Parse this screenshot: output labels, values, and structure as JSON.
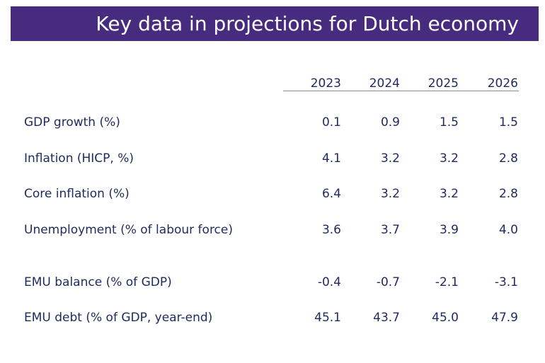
{
  "title": "Key data in projections for Dutch economy",
  "table": {
    "years": [
      "2023",
      "2024",
      "2025",
      "2026"
    ],
    "rows": [
      {
        "label": "GDP growth (%)",
        "values": [
          "0.1",
          "0.9",
          "1.5",
          "1.5"
        ]
      },
      {
        "label": "Inflation (HICP, %)",
        "values": [
          "4.1",
          "3.2",
          "3.2",
          "2.8"
        ]
      },
      {
        "label": "Core inflation (%)",
        "values": [
          "6.4",
          "3.2",
          "3.2",
          "2.8"
        ]
      },
      {
        "label": "Unemployment (% of labour force)",
        "values": [
          "3.6",
          "3.7",
          "3.9",
          "4.0"
        ]
      },
      {
        "label": "EMU balance (% of GDP)",
        "values": [
          "-0.4",
          "-0.7",
          "-2.1",
          "-3.1"
        ]
      },
      {
        "label": "EMU debt (% of GDP, year-end)",
        "values": [
          "45.1",
          "43.7",
          "45.0",
          "47.9"
        ]
      }
    ]
  },
  "colors": {
    "banner": "#472b7e",
    "text": "#1f2a5c",
    "rule": "#8a8a95"
  }
}
